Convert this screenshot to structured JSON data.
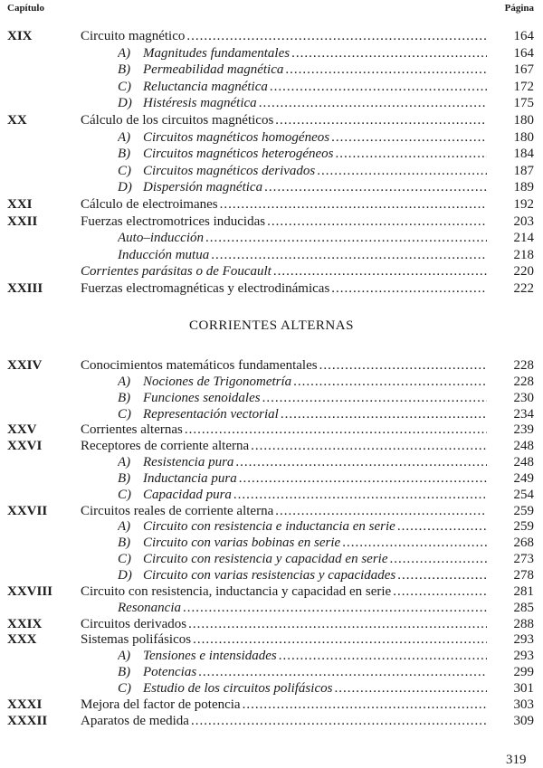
{
  "header": {
    "chapter_label": "Capítulo",
    "page_label": "Página"
  },
  "block1": [
    {
      "type": "main",
      "num": "XIX",
      "title": "Circuito magnético",
      "page": "164"
    },
    {
      "type": "sub",
      "letter": "A)",
      "title": "Magnitudes fundamentales",
      "page": "164"
    },
    {
      "type": "sub",
      "letter": "B)",
      "title": "Permeabilidad magnética",
      "page": "167"
    },
    {
      "type": "sub",
      "letter": "C)",
      "title": "Reluctancia magnética",
      "page": "172"
    },
    {
      "type": "sub",
      "letter": "D)",
      "title": "Histéresis magnética",
      "page": "175"
    },
    {
      "type": "main",
      "num": "XX",
      "title": "Cálculo de los circuitos magnéticos",
      "page": "180"
    },
    {
      "type": "sub",
      "letter": "A)",
      "title": "Circuitos magnéticos homogéneos",
      "page": "180"
    },
    {
      "type": "sub",
      "letter": "B)",
      "title": "Circuitos magnéticos heterogéneos",
      "page": "184"
    },
    {
      "type": "sub",
      "letter": "C)",
      "title": "Circuitos magnéticos derivados",
      "page": "187"
    },
    {
      "type": "sub",
      "letter": "D)",
      "title": "Dispersión magnética",
      "page": "189"
    },
    {
      "type": "main",
      "num": "XXI",
      "title": "Cálculo de electroimanes",
      "page": "192"
    },
    {
      "type": "main",
      "num": "XXII",
      "title": "Fuerzas electromotrices inducidas",
      "page": "203"
    },
    {
      "type": "plain",
      "title": "Auto–inducción",
      "page": "214"
    },
    {
      "type": "plain",
      "title": "Inducción mutua",
      "page": "218"
    },
    {
      "type": "imain",
      "title": "Corrientes parásitas o de Foucault",
      "page": "220"
    },
    {
      "type": "main",
      "num": "XXIII",
      "title": "Fuerzas electromagnéticas y electrodinámicas",
      "page": "222"
    }
  ],
  "section_title": "CORRIENTES ALTERNAS",
  "block2": [
    {
      "type": "main",
      "num": "XXIV",
      "title": "Conocimientos matemáticos fundamentales",
      "page": "228"
    },
    {
      "type": "sub",
      "letter": "A)",
      "title": "Nociones de Trigonometría",
      "page": "228"
    },
    {
      "type": "sub",
      "letter": "B)",
      "title": "Funciones senoidales",
      "page": "230"
    },
    {
      "type": "sub",
      "letter": "C)",
      "title": "Representación vectorial",
      "page": "234"
    },
    {
      "type": "main",
      "num": "XXV",
      "title": "Corrientes alternas",
      "page": "239"
    },
    {
      "type": "main",
      "num": "XXVI",
      "title": "Receptores de corriente alterna",
      "page": "248"
    },
    {
      "type": "sub",
      "letter": "A)",
      "title": "Resistencia pura",
      "page": "248"
    },
    {
      "type": "sub",
      "letter": "B)",
      "title": "Inductancia pura",
      "page": "249"
    },
    {
      "type": "sub",
      "letter": "C)",
      "title": "Capacidad pura",
      "page": "254"
    },
    {
      "type": "main",
      "num": "XXVII",
      "title": "Circuitos reales de corriente alterna",
      "page": "259"
    },
    {
      "type": "sub",
      "letter": "A)",
      "title": "Circuito con resistencia e inductancia en serie",
      "page": "259"
    },
    {
      "type": "sub",
      "letter": "B)",
      "title": "Circuito con varias bobinas en serie",
      "page": "268"
    },
    {
      "type": "sub",
      "letter": "C)",
      "title": "Circuito con resistencia y capacidad en serie",
      "page": "273"
    },
    {
      "type": "sub",
      "letter": "D)",
      "title": "Circuito con varias resistencias y capacidades",
      "page": "278"
    },
    {
      "type": "main",
      "num": "XXVIII",
      "title": "Circuito con resistencia, inductancia y capacidad en serie",
      "page": "281"
    },
    {
      "type": "plain",
      "title": "Resonancia",
      "page": "285"
    },
    {
      "type": "main",
      "num": "XXIX",
      "title": "Circuitos derivados",
      "page": "288"
    },
    {
      "type": "main",
      "num": "XXX",
      "title": "Sistemas polifásicos",
      "page": "293"
    },
    {
      "type": "sub",
      "letter": "A)",
      "title": "Tensiones e intensidades",
      "page": "293"
    },
    {
      "type": "sub",
      "letter": "B)",
      "title": "Potencias",
      "page": "299"
    },
    {
      "type": "sub",
      "letter": "C)",
      "title": "Estudio de los circuitos polifásicos",
      "page": "301"
    },
    {
      "type": "main",
      "num": "XXXI",
      "title": "Mejora del factor de potencia",
      "page": "303"
    },
    {
      "type": "main",
      "num": "XXXII",
      "title": "Aparatos de medida",
      "page": "309"
    }
  ],
  "folio": "319"
}
